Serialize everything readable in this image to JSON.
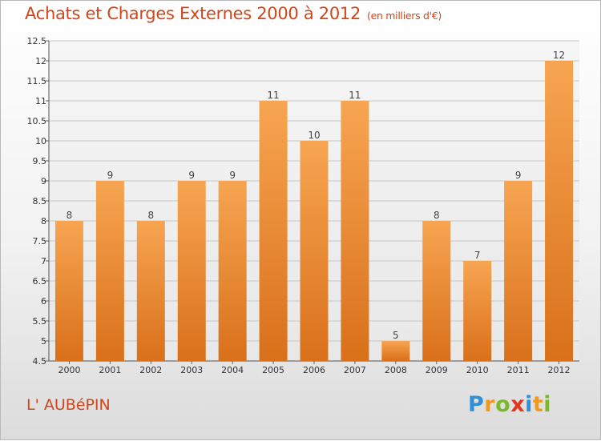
{
  "header": {
    "title": "Achats et Charges Externes 2000 à 2012",
    "subtitle": "(en milliers d'€)"
  },
  "footer": {
    "commune": "L' AUBéPIN",
    "logo": {
      "p": "P",
      "r": "r",
      "o": "o",
      "x": "x",
      "i1": "i",
      "t": "t",
      "i2": "i"
    }
  },
  "colors": {
    "title": "#d0461a",
    "bar_top": "#f7a552",
    "bar_bottom": "#d9701a",
    "grid": "#c8c8c8"
  },
  "chart_data": {
    "type": "bar",
    "title": "Achats et Charges Externes 2000 à 2012",
    "subtitle": "(en milliers d'€)",
    "categories": [
      "2000",
      "2001",
      "2002",
      "2003",
      "2004",
      "2005",
      "2006",
      "2007",
      "2008",
      "2009",
      "2010",
      "2011",
      "2012"
    ],
    "values": [
      8,
      9,
      8,
      9,
      9,
      11,
      10,
      11,
      5,
      8,
      7,
      9,
      12
    ],
    "data_labels": [
      "8",
      "9",
      "8",
      "9",
      "9",
      "11",
      "10",
      "11",
      "5",
      "8",
      "7",
      "9",
      "12"
    ],
    "ylim": [
      4.5,
      12.5
    ],
    "yticks": [
      "4.5",
      "5",
      "5.5",
      "6",
      "6.5",
      "7",
      "7.5",
      "8",
      "8.5",
      "9",
      "9.5",
      "10",
      "10.5",
      "11",
      "11.5",
      "12",
      "12.5"
    ],
    "grid": true,
    "xlabel": "",
    "ylabel": ""
  }
}
